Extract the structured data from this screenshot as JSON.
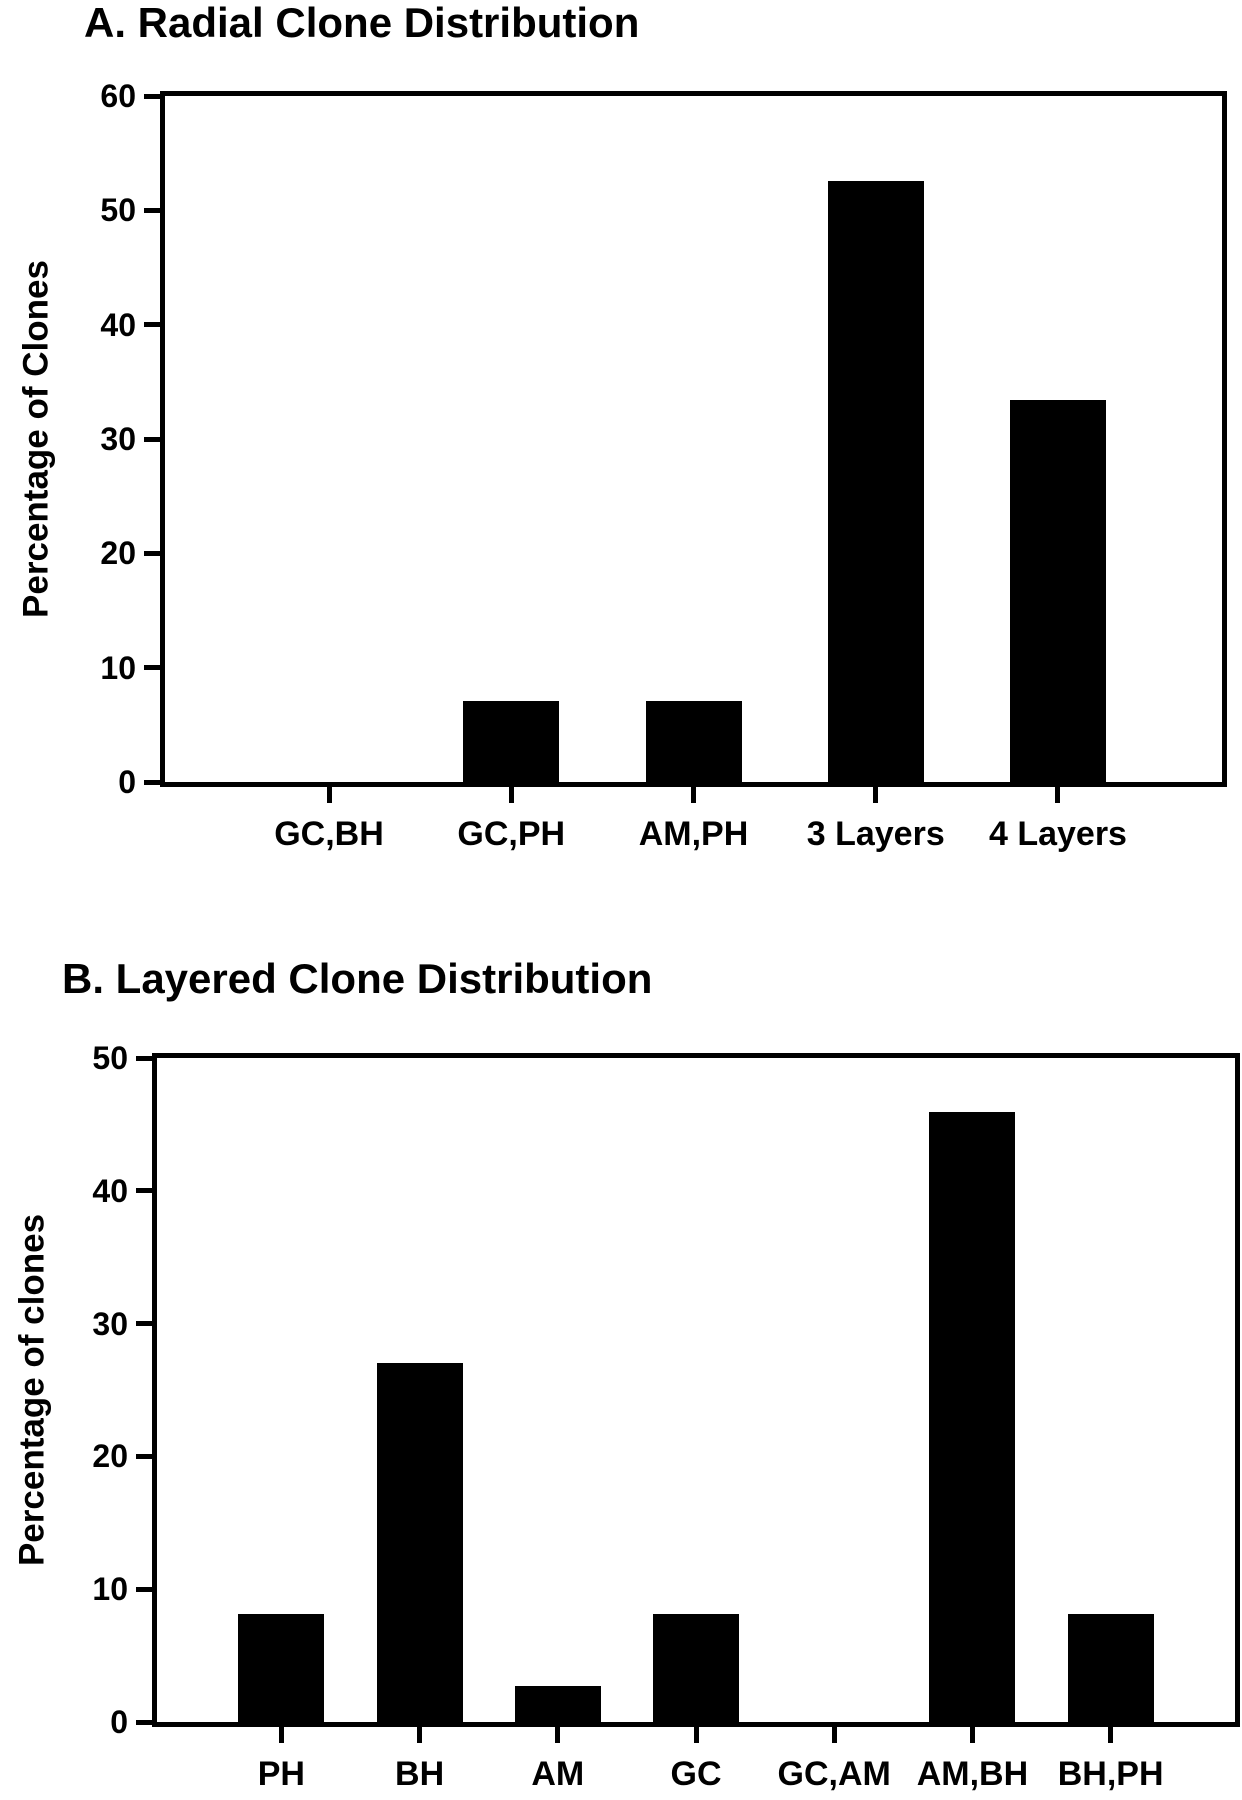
{
  "figure": {
    "background": "#ffffff",
    "text_color": "#000000"
  },
  "chart_data": [
    {
      "type": "bar",
      "panel": "A",
      "title": "A. Radial Clone Distribution",
      "ylabel": "Percentage of Clones",
      "xlabel": "",
      "categories": [
        "GC,BH",
        "GC,PH",
        "AM,PH",
        "3 Layers",
        "4 Layers"
      ],
      "values": [
        0,
        7.1,
        7.1,
        52.6,
        33.4
      ],
      "ylim": [
        0,
        60
      ],
      "yticks": [
        0,
        10,
        20,
        30,
        40,
        50,
        60
      ],
      "grid": false,
      "legend": "none",
      "bar_color": "#000000"
    },
    {
      "type": "bar",
      "panel": "B",
      "title": "B. Layered Clone Distribution",
      "ylabel": "Percentage of clones",
      "xlabel": "",
      "categories": [
        "PH",
        "BH",
        "AM",
        "GC",
        "GC,AM",
        "AM,BH",
        "BH,PH"
      ],
      "values": [
        8.1,
        27,
        2.7,
        8.1,
        0,
        45.9,
        8.1
      ],
      "ylim": [
        0,
        50
      ],
      "yticks": [
        0,
        10,
        20,
        30,
        40,
        50
      ],
      "grid": false,
      "legend": "none",
      "bar_color": "#000000"
    }
  ]
}
